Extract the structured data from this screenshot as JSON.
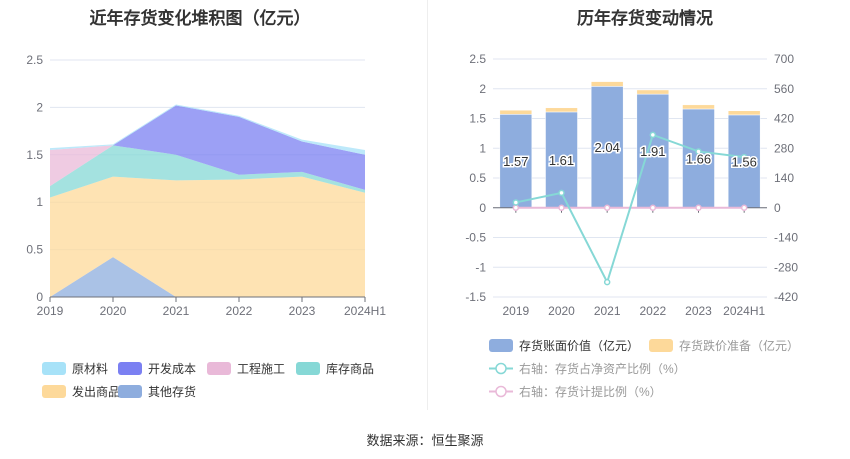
{
  "source": "数据来源：恒生聚源",
  "chart_data": [
    {
      "type": "area",
      "stacked": true,
      "title": "近年存货变化堆积图（亿元）",
      "categories": [
        "2019",
        "2020",
        "2021",
        "2022",
        "2023",
        "2024H1"
      ],
      "ylim": [
        0,
        2.5
      ],
      "yticks": [
        "0",
        "0.5",
        "1",
        "1.5",
        "2",
        "2.5"
      ],
      "legend_position": "bottom",
      "series": [
        {
          "name": "其他存货",
          "color": "#8eadde",
          "values": [
            0,
            0.42,
            0,
            0,
            0,
            0
          ]
        },
        {
          "name": "发出商品",
          "color": "#fdd99a",
          "values": [
            1.05,
            0.85,
            1.23,
            1.24,
            1.27,
            1.1
          ]
        },
        {
          "name": "库存商品",
          "color": "#86d8d6",
          "values": [
            0.12,
            0.33,
            0.27,
            0.05,
            0.05,
            0.03
          ]
        },
        {
          "name": "工程施工",
          "color": "#e9b9d8",
          "values": [
            0.38,
            0,
            0,
            0,
            0,
            0
          ]
        },
        {
          "name": "开发成本",
          "color": "#7b80f2",
          "values": [
            0,
            0,
            0.52,
            0.61,
            0.32,
            0.37
          ]
        },
        {
          "name": "原材料",
          "color": "#a7e2f8",
          "values": [
            0.02,
            0.01,
            0.01,
            0.01,
            0.02,
            0.05
          ]
        }
      ]
    },
    {
      "type": "bar+line",
      "title": "历年存货变动情况",
      "categories": [
        "2019",
        "2020",
        "2021",
        "2022",
        "2023",
        "2024H1"
      ],
      "ylim": [
        -1.5,
        2.5
      ],
      "yticks": [
        "-1.5",
        "-1",
        "-0.5",
        "0",
        "0.5",
        "1",
        "1.5",
        "2",
        "2.5"
      ],
      "y2lim": [
        -420,
        700
      ],
      "y2ticks": [
        "-420",
        "-280",
        "-140",
        "0",
        "140",
        "280",
        "420",
        "560",
        "700"
      ],
      "legend_position": "bottom",
      "bars": [
        {
          "name": "存货账面价值（亿元）",
          "color": "#8eadde",
          "values": [
            1.57,
            1.61,
            2.04,
            1.91,
            1.66,
            1.56
          ],
          "labels": [
            "1.57",
            "1.61",
            "2.04",
            "1.91",
            "1.66",
            "1.56"
          ]
        },
        {
          "name": "存货跌价准备（亿元）",
          "color": "#fdd99a",
          "values": [
            0.07,
            0.07,
            0.08,
            0.07,
            0.07,
            0.07
          ]
        }
      ],
      "lines": [
        {
          "name": "右轴：存货占净资产比例（%）",
          "color": "#86d8d6",
          "values": [
            25,
            70,
            -350,
            343,
            265,
            238
          ]
        },
        {
          "name": "右轴：存货计提比例（%）",
          "color": "#e9b9d8",
          "values": [
            0,
            0,
            0,
            0,
            0,
            0
          ]
        }
      ]
    }
  ]
}
